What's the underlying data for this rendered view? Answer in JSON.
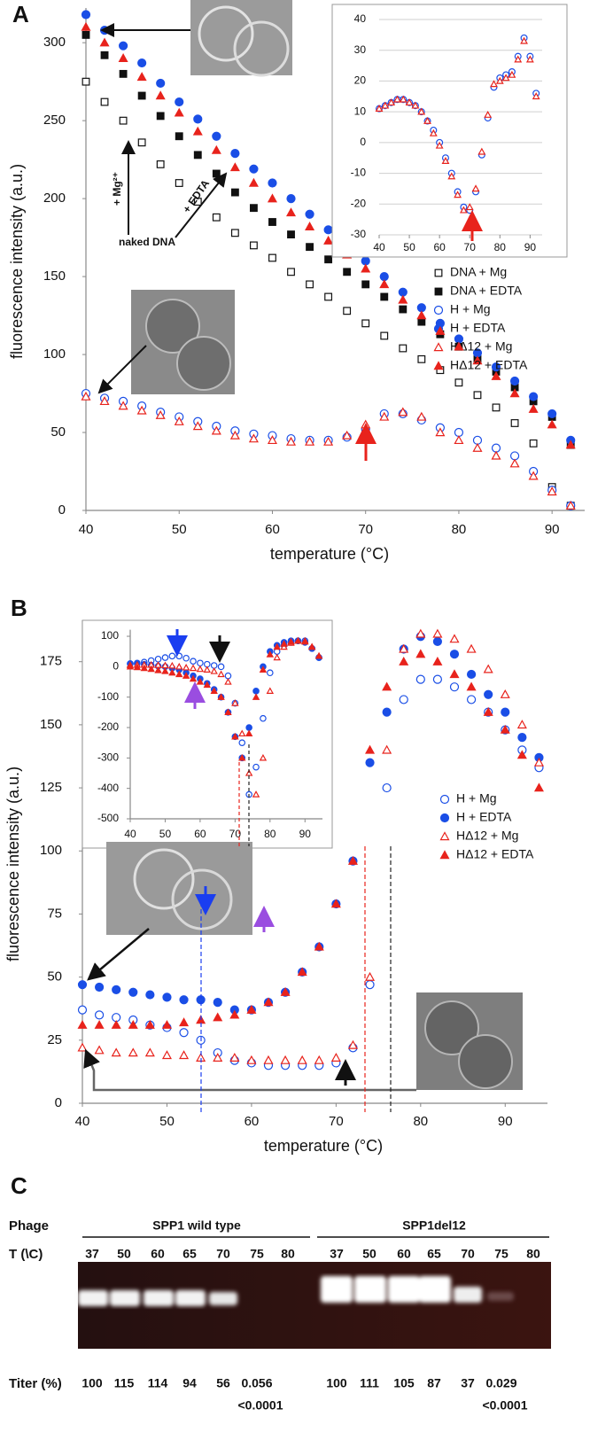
{
  "panel_labels": [
    "A",
    "B",
    "C"
  ],
  "chart_data": [
    {
      "type": "scatter",
      "x_label": "temperature (°C)",
      "y_label": "fluorescence intensity (a.u.)",
      "xlim": [
        40,
        93.5
      ],
      "ylim": [
        0,
        320
      ],
      "xticks": [
        40,
        50,
        60,
        70,
        80,
        90
      ],
      "yticks": [
        0,
        50,
        100,
        150,
        200,
        250,
        300
      ],
      "grid": false,
      "legend": "lower right",
      "annotations": [
        "+ Mg²⁺",
        "+ EDTA",
        "naked DNA"
      ],
      "x": [
        40,
        42,
        44,
        46,
        48,
        50,
        52,
        54,
        56,
        58,
        60,
        62,
        64,
        66,
        68,
        70,
        72,
        74,
        76,
        78,
        80,
        82,
        84,
        86,
        88,
        90,
        92
      ],
      "series": [
        {
          "name": "DNA + Mg",
          "color": "#111111",
          "marker": "square",
          "filled": false,
          "values": [
            275,
            262,
            250,
            236,
            222,
            210,
            198,
            188,
            178,
            170,
            162,
            153,
            145,
            137,
            128,
            120,
            112,
            104,
            97,
            90,
            82,
            74,
            66,
            56,
            43,
            15,
            3
          ]
        },
        {
          "name": "DNA + EDTA",
          "color": "#111111",
          "marker": "square",
          "filled": true,
          "values": [
            305,
            292,
            280,
            266,
            253,
            240,
            228,
            216,
            204,
            194,
            185,
            177,
            169,
            161,
            153,
            145,
            137,
            129,
            121,
            113,
            105,
            97,
            89,
            79,
            70,
            60,
            42
          ]
        },
        {
          "name": "H + Mg",
          "color": "#1a4ee6",
          "marker": "circle",
          "filled": false,
          "values": [
            75,
            72,
            70,
            67,
            63,
            60,
            57,
            54,
            51,
            49,
            48,
            46,
            45,
            45,
            47,
            52,
            62,
            62,
            58,
            53,
            50,
            45,
            40,
            35,
            25,
            13,
            3
          ]
        },
        {
          "name": "H + EDTA",
          "color": "#1a4ee6",
          "marker": "circle",
          "filled": true,
          "values": [
            318,
            308,
            298,
            287,
            274,
            262,
            251,
            240,
            229,
            219,
            210,
            200,
            190,
            180,
            170,
            160,
            150,
            140,
            130,
            120,
            110,
            101,
            92,
            83,
            73,
            62,
            45
          ]
        },
        {
          "name": "HΔ12 + Mg",
          "color": "#e8231c",
          "marker": "triangle",
          "filled": false,
          "values": [
            73,
            70,
            67,
            64,
            61,
            57,
            54,
            51,
            48,
            46,
            45,
            44,
            44,
            44,
            48,
            55,
            60,
            63,
            60,
            50,
            45,
            40,
            35,
            30,
            22,
            12,
            3
          ]
        },
        {
          "name": "HΔ12 + EDTA",
          "color": "#e8231c",
          "marker": "triangle",
          "filled": true,
          "values": [
            310,
            300,
            290,
            278,
            266,
            255,
            243,
            231,
            220,
            210,
            200,
            191,
            182,
            173,
            164,
            155,
            145,
            135,
            125,
            115,
            105,
            96,
            86,
            75,
            65,
            55,
            42
          ]
        }
      ]
    },
    {
      "type": "scatter",
      "xlim": [
        40,
        94
      ],
      "ylim": [
        -30,
        40
      ],
      "xticks": [
        40,
        50,
        60,
        70,
        80,
        90
      ],
      "yticks": [
        -30,
        -20,
        -10,
        0,
        10,
        20,
        30,
        40
      ],
      "grid": true,
      "x": [
        40,
        42,
        44,
        46,
        48,
        50,
        52,
        54,
        56,
        58,
        60,
        62,
        64,
        66,
        68,
        70,
        72,
        74,
        76,
        78,
        80,
        82,
        84,
        86,
        88,
        90,
        92
      ],
      "series": [
        {
          "color": "#1a4ee6",
          "marker": "circle",
          "filled": false,
          "values": [
            11,
            12,
            13,
            14,
            14,
            13,
            12,
            10,
            7,
            4,
            0,
            -5,
            -10,
            -16,
            -21,
            -22,
            -16,
            -4,
            8,
            18,
            21,
            22,
            23,
            28,
            34,
            28,
            16
          ]
        },
        {
          "color": "#e8231c",
          "marker": "triangle",
          "filled": false,
          "values": [
            11,
            12,
            13,
            14,
            14,
            13,
            12,
            10,
            7,
            3,
            -1,
            -6,
            -11,
            -17,
            -22,
            -21,
            -15,
            -3,
            9,
            19,
            20,
            21,
            22,
            27,
            33,
            27,
            15
          ]
        }
      ]
    },
    {
      "type": "scatter",
      "x_label": "temperature (°C)",
      "y_label": "fluorescence intensity (a.u.)",
      "xlim": [
        40,
        95
      ],
      "ylim": [
        0,
        190
      ],
      "xticks": [
        40,
        50,
        60,
        70,
        80,
        90
      ],
      "yticks": [
        0,
        25,
        50,
        75,
        100,
        125,
        150,
        175
      ],
      "grid": false,
      "legend": "right",
      "x": [
        40,
        42,
        44,
        46,
        48,
        50,
        52,
        54,
        56,
        58,
        60,
        62,
        64,
        66,
        68,
        70,
        72,
        74,
        76,
        78,
        80,
        82,
        84,
        86,
        88,
        90,
        92,
        94
      ],
      "series": [
        {
          "name": "H + Mg",
          "color": "#1a4ee6",
          "marker": "circle",
          "filled": false,
          "values": [
            37,
            35,
            34,
            33,
            31,
            30,
            28,
            25,
            20,
            17,
            16,
            15,
            15,
            15,
            15,
            16,
            22,
            47,
            125,
            160,
            168,
            168,
            165,
            160,
            155,
            148,
            140,
            133
          ]
        },
        {
          "name": "H + EDTA",
          "color": "#1a4ee6",
          "marker": "circle",
          "filled": true,
          "values": [
            47,
            46,
            45,
            44,
            43,
            42,
            41,
            41,
            40,
            37,
            37,
            40,
            44,
            52,
            62,
            79,
            96,
            135,
            155,
            180,
            185,
            183,
            178,
            170,
            162,
            155,
            145,
            137
          ]
        },
        {
          "name": "HΔ12 + Mg",
          "color": "#e8231c",
          "marker": "triangle",
          "filled": false,
          "values": [
            22,
            21,
            20,
            20,
            20,
            19,
            19,
            18,
            18,
            18,
            17,
            17,
            17,
            17,
            17,
            18,
            23,
            50,
            140,
            180,
            186,
            186,
            184,
            180,
            172,
            162,
            150,
            135
          ]
        },
        {
          "name": "HΔ12 + EDTA",
          "color": "#e8231c",
          "marker": "triangle",
          "filled": true,
          "values": [
            31,
            31,
            31,
            31,
            31,
            31,
            32,
            33,
            34,
            35,
            37,
            40,
            44,
            52,
            62,
            79,
            96,
            140,
            165,
            175,
            178,
            175,
            170,
            165,
            155,
            148,
            138,
            125
          ]
        }
      ]
    },
    {
      "type": "scatter",
      "xlim": [
        40,
        95
      ],
      "ylim": [
        -500,
        110
      ],
      "xticks": [
        40,
        50,
        60,
        70,
        80,
        90
      ],
      "yticks": [
        -500,
        -400,
        -300,
        -200,
        -100,
        0,
        100
      ],
      "grid": false,
      "x": [
        40,
        42,
        44,
        46,
        48,
        50,
        52,
        54,
        56,
        58,
        60,
        62,
        64,
        66,
        68,
        70,
        72,
        74,
        76,
        78,
        80,
        82,
        84,
        86,
        88,
        90,
        92,
        94
      ],
      "series": [
        {
          "color": "#1a4ee6",
          "marker": "circle",
          "filled": false,
          "values": [
            10,
            12,
            15,
            20,
            25,
            30,
            35,
            35,
            28,
            18,
            12,
            8,
            4,
            0,
            -30,
            -120,
            -250,
            -420,
            -330,
            -170,
            -20,
            50,
            70,
            80,
            85,
            85,
            60,
            30
          ]
        },
        {
          "color": "#1a4ee6",
          "marker": "circle",
          "filled": true,
          "values": [
            10,
            10,
            8,
            5,
            2,
            0,
            -5,
            -10,
            -20,
            -30,
            -40,
            -55,
            -75,
            -100,
            -150,
            -230,
            -300,
            -200,
            -80,
            0,
            50,
            70,
            80,
            85,
            85,
            80,
            60,
            30
          ]
        },
        {
          "color": "#e8231c",
          "marker": "triangle",
          "filled": false,
          "values": [
            5,
            6,
            6,
            6,
            5,
            4,
            3,
            0,
            -3,
            -5,
            -8,
            -10,
            -15,
            -25,
            -50,
            -120,
            -220,
            -350,
            -420,
            -300,
            -80,
            30,
            65,
            78,
            85,
            85,
            65,
            35
          ]
        },
        {
          "color": "#e8231c",
          "marker": "triangle",
          "filled": true,
          "values": [
            0,
            -2,
            -5,
            -8,
            -12,
            -15,
            -20,
            -25,
            -30,
            -40,
            -50,
            -60,
            -80,
            -100,
            -150,
            -230,
            -300,
            -220,
            -100,
            -10,
            40,
            65,
            75,
            82,
            85,
            82,
            65,
            35
          ]
        }
      ]
    }
  ],
  "panel_c": {
    "row_labels": {
      "phage": "Phage",
      "temperature": "T (\\C)",
      "titer": "Titer (%)"
    },
    "strains": [
      "SPP1 wild type",
      "SPP1del12"
    ],
    "temperatures": [
      [
        37,
        50,
        60,
        65,
        70,
        75,
        80
      ],
      [
        37,
        50,
        60,
        65,
        70,
        75,
        80
      ]
    ],
    "titers": [
      [
        100,
        115,
        114,
        94,
        56,
        0.056,
        "<0.0001"
      ],
      [
        100,
        111,
        105,
        87,
        37,
        0.029,
        "<0.0001"
      ]
    ]
  }
}
